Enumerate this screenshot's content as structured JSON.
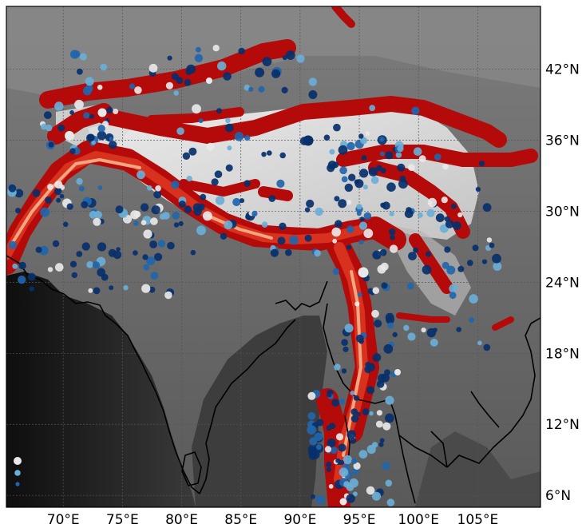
{
  "map": {
    "lon_ticks": [
      {
        "value": 70,
        "label": "70°E"
      },
      {
        "value": 75,
        "label": "75°E"
      },
      {
        "value": 80,
        "label": "80°E"
      },
      {
        "value": 85,
        "label": "85°E"
      },
      {
        "value": 90,
        "label": "90°E"
      },
      {
        "value": 95,
        "label": "95°E"
      },
      {
        "value": 100,
        "label": "100°E"
      },
      {
        "value": 105,
        "label": "105°E"
      }
    ],
    "lat_ticks": [
      {
        "value": 42,
        "label": "42°N"
      },
      {
        "value": 36,
        "label": "36°N"
      },
      {
        "value": 30,
        "label": "30°N"
      },
      {
        "value": 24,
        "label": "24°N"
      },
      {
        "value": 18,
        "label": "18°N"
      },
      {
        "value": 12,
        "label": "12°N"
      },
      {
        "value": 6,
        "label": "6°N"
      }
    ],
    "extent": {
      "lon_min": 65.2,
      "lon_max": 110.3,
      "lat_min": 5.0,
      "lat_max": 47.3
    },
    "colors": {
      "hazard_dark": "#b40a0a",
      "hazard_mid": "#d8321e",
      "hazard_light": "#f4a582",
      "point_dark": "#08306b",
      "point_mid": "#2166ac",
      "point_light": "#6baed6",
      "point_white": "#e8e8e8",
      "coastline": "#000000",
      "grid": "#555555"
    }
  }
}
